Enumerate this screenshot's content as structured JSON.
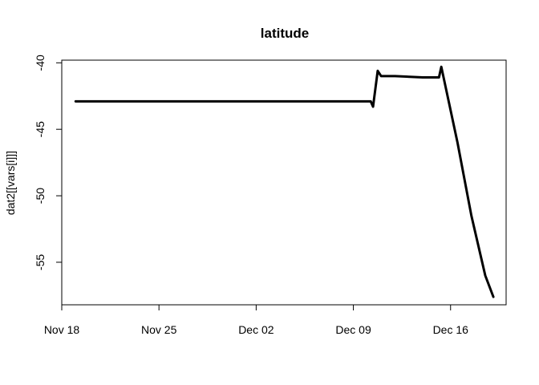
{
  "chart_data": {
    "type": "line",
    "title": "latitude",
    "xlabel": "",
    "ylabel": "dat2[[vars[i]]]",
    "x_axis_type": "date",
    "xlim": [
      "2018-11-18",
      "2018-12-20"
    ],
    "ylim": [
      -58.2,
      -39.8
    ],
    "x_ticks": [
      {
        "value": "2018-11-18",
        "label": "Nov 18"
      },
      {
        "value": "2018-11-25",
        "label": "Nov 25"
      },
      {
        "value": "2018-12-02",
        "label": "Dec 02"
      },
      {
        "value": "2018-12-09",
        "label": "Dec 09"
      },
      {
        "value": "2018-12-16",
        "label": "Dec 16"
      }
    ],
    "y_ticks": [
      {
        "value": -40,
        "label": "-40"
      },
      {
        "value": -45,
        "label": "-45"
      },
      {
        "value": -50,
        "label": "-50"
      },
      {
        "value": -55,
        "label": "-55"
      }
    ],
    "grid": false,
    "legend": "none",
    "series": [
      {
        "color": "#000000",
        "points": [
          {
            "x": "2018-11-19",
            "y": -42.9
          },
          {
            "x": "2018-11-25",
            "y": -42.9
          },
          {
            "x": "2018-12-02",
            "y": -42.9
          },
          {
            "x": "2018-12-06",
            "y": -42.9
          },
          {
            "x": "2018-12-10 06:00",
            "y": -42.9
          },
          {
            "x": "2018-12-10 10:00",
            "y": -43.3
          },
          {
            "x": "2018-12-10 18:00",
            "y": -40.6
          },
          {
            "x": "2018-12-11",
            "y": -41.0
          },
          {
            "x": "2018-12-12",
            "y": -41.0
          },
          {
            "x": "2018-12-14",
            "y": -41.1
          },
          {
            "x": "2018-12-15 04:00",
            "y": -41.1
          },
          {
            "x": "2018-12-15 08:00",
            "y": -40.3
          },
          {
            "x": "2018-12-16 12:00",
            "y": -46.0
          },
          {
            "x": "2018-12-17 12:00",
            "y": -51.5
          },
          {
            "x": "2018-12-18 12:00",
            "y": -56.0
          },
          {
            "x": "2018-12-19 02:00",
            "y": -57.6
          }
        ]
      }
    ]
  }
}
